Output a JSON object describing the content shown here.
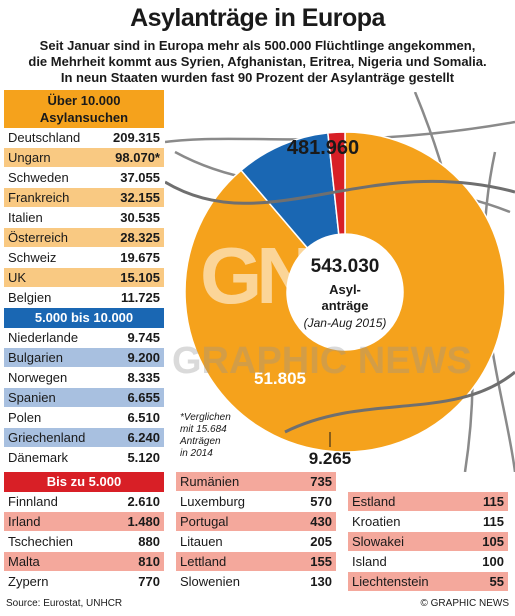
{
  "title": "Asylanträge in Europa",
  "subtitle": [
    "Seit Januar sind in Europa mehr als 500.000 Flüchtlinge angekommen,",
    "die Mehrheit kommt aus Syrien, Afghanistan, Eritrea, Nigeria und Somalia.",
    "In neun Staaten wurden fast 90 Prozent der Asylanträge gestellt"
  ],
  "groups": {
    "over10000": {
      "heading": [
        "Über 10.000",
        "Asylansuchen"
      ],
      "rows": [
        {
          "country": "Deutschland",
          "value": "209.315"
        },
        {
          "country": "Ungarn",
          "value": "98.070*"
        },
        {
          "country": "Schweden",
          "value": "37.055"
        },
        {
          "country": "Frankreich",
          "value": "32.155"
        },
        {
          "country": "Italien",
          "value": "30.535"
        },
        {
          "country": "Österreich",
          "value": "28.325"
        },
        {
          "country": "Schweiz",
          "value": "19.675"
        },
        {
          "country": "UK",
          "value": "15.105"
        },
        {
          "country": "Belgien",
          "value": "11.725"
        }
      ]
    },
    "5000to10000": {
      "heading": "5.000 bis 10.000",
      "rows": [
        {
          "country": "Niederlande",
          "value": "9.745"
        },
        {
          "country": "Bulgarien",
          "value": "9.200"
        },
        {
          "country": "Norwegen",
          "value": "8.335"
        },
        {
          "country": "Spanien",
          "value": "6.655"
        },
        {
          "country": "Polen",
          "value": "6.510"
        },
        {
          "country": "Griechenland",
          "value": "6.240"
        },
        {
          "country": "Dänemark",
          "value": "5.120"
        }
      ]
    },
    "under5000": {
      "heading": "Bis zu 5.000",
      "col1": [
        {
          "country": "Finnland",
          "value": "2.610"
        },
        {
          "country": "Irland",
          "value": "1.480"
        },
        {
          "country": "Tschechien",
          "value": "880"
        },
        {
          "country": "Malta",
          "value": "810"
        },
        {
          "country": "Zypern",
          "value": "770"
        }
      ],
      "col2": [
        {
          "country": "Rumänien",
          "value": "735"
        },
        {
          "country": "Luxemburg",
          "value": "570"
        },
        {
          "country": "Portugal",
          "value": "430"
        },
        {
          "country": "Litauen",
          "value": "205"
        },
        {
          "country": "Lettland",
          "value": "155"
        },
        {
          "country": "Slowenien",
          "value": "130"
        }
      ],
      "col3": [
        {
          "country": "Estland",
          "value": "115"
        },
        {
          "country": "Kroatien",
          "value": "115"
        },
        {
          "country": "Slowakei",
          "value": "105"
        },
        {
          "country": "Island",
          "value": "100"
        },
        {
          "country": "Liechtenstein",
          "value": "55"
        }
      ]
    }
  },
  "chart_data": {
    "type": "pie",
    "variant": "donut",
    "center_total": "543.030",
    "center_label": [
      "Asyl-",
      "anträge"
    ],
    "center_note": "(Jan-Aug 2015)",
    "slices": [
      {
        "label": "481.960",
        "value": 481960,
        "color": "#f5a21c"
      },
      {
        "label": "51.805",
        "value": 51805,
        "color": "#1a67b3"
      },
      {
        "label": "9.265",
        "value": 9265,
        "color": "#d81f26"
      }
    ]
  },
  "footnote": [
    "*Verglichen",
    "mit 15.684",
    "Anträgen",
    "in 2014"
  ],
  "source": "Source: Eurostat, UNHCR",
  "credit": "© GRAPHIC NEWS",
  "watermark": "GRAPHIC NEWS",
  "watermark_logo": "GN",
  "colors": {
    "orange": "#f5a21c",
    "blue": "#1a67b3",
    "red": "#d81f26"
  }
}
